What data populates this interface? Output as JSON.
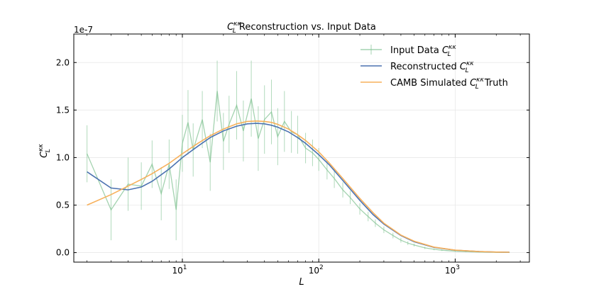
{
  "chart_data": {
    "type": "line",
    "title": "C_L^{κκ} Reconstruction vs. Input Data",
    "title_parts": {
      "symbol": "C",
      "sub": "L",
      "sup": "κκ",
      "rest": " Reconstruction vs. Input Data"
    },
    "xlabel": "L",
    "ylabel": "C_L^{κκ}",
    "ylabel_parts": {
      "symbol": "C",
      "sub": "L",
      "sup": "κκ"
    },
    "x_scale": "log",
    "xlim": [
      1.6,
      3500
    ],
    "ylim": [
      -1e-08,
      2.3e-07
    ],
    "y_offset_label": "1e-7",
    "x_ticks": [
      {
        "value": 10,
        "base": "10",
        "exp": "1"
      },
      {
        "value": 100,
        "base": "10",
        "exp": "2"
      },
      {
        "value": 1000,
        "base": "10",
        "exp": "3"
      }
    ],
    "y_ticks": [
      {
        "value": 0.0,
        "label": "0.0"
      },
      {
        "value": 5e-08,
        "label": "0.5"
      },
      {
        "value": 1e-07,
        "label": "1.0"
      },
      {
        "value": 1.5e-07,
        "label": "1.5"
      },
      {
        "value": 2e-07,
        "label": "2.0"
      }
    ],
    "grid": true,
    "legend_position": "top-right",
    "series": [
      {
        "name": "Input Data",
        "label_prefix": "Input Data ",
        "label_suffix": "",
        "color": "#7dc18f",
        "style": "errorbar",
        "x": [
          2,
          3,
          4,
          5,
          6,
          7,
          8,
          9,
          10,
          11,
          12,
          14,
          16,
          18,
          20,
          22,
          25,
          28,
          32,
          36,
          40,
          45,
          50,
          56,
          63,
          70,
          80,
          90,
          100,
          115,
          130,
          150,
          170,
          200,
          230,
          260,
          300,
          350,
          400,
          450,
          500,
          600,
          700,
          800,
          1000,
          1200,
          1500,
          2000,
          2500
        ],
        "values": [
          1.04e-07,
          4.5e-08,
          7.2e-08,
          7e-08,
          9.3e-08,
          6.2e-08,
          9.3e-08,
          4.5e-08,
          1.15e-07,
          1.37e-07,
          1.08e-07,
          1.4e-07,
          9.5e-08,
          1.7e-07,
          1.17e-07,
          1.35e-07,
          1.55e-07,
          1.28e-07,
          1.62e-07,
          1.2e-07,
          1.4e-07,
          1.48e-07,
          1.22e-07,
          1.38e-07,
          1.27e-07,
          1.24e-07,
          1.1e-07,
          1.05e-07,
          9.8e-08,
          8.7e-08,
          7.8e-08,
          6.6e-08,
          5.8e-08,
          4.6e-08,
          3.8e-08,
          3.1e-08,
          2.4e-08,
          1.8e-08,
          1.3e-08,
          1e-08,
          8e-09,
          5e-09,
          3.5e-09,
          2.5e-09,
          1.5e-09,
          1e-09,
          6e-10,
          3e-10,
          2e-10
        ],
        "errors": [
          3e-08,
          3.2e-08,
          2.8e-08,
          2.5e-08,
          2.5e-08,
          2.8e-08,
          2.6e-08,
          3.2e-08,
          3e-08,
          3.4e-08,
          2.8e-08,
          3e-08,
          3e-08,
          3.2e-08,
          3e-08,
          3e-08,
          3.6e-08,
          3.2e-08,
          4e-08,
          3.4e-08,
          3.6e-08,
          3.4e-08,
          3e-08,
          3.2e-08,
          2.2e-08,
          2e-08,
          1.6e-08,
          1.4e-08,
          1.2e-08,
          1e-08,
          1e-08,
          8e-09,
          7e-09,
          6e-09,
          5e-09,
          4e-09,
          3.5e-09,
          3e-09,
          2.5e-09,
          2e-09,
          1.5e-09,
          1.2e-09,
          1e-09,
          8e-10,
          6e-10,
          4e-10,
          3e-10,
          2e-10,
          2e-10
        ]
      },
      {
        "name": "Reconstructed",
        "label_prefix": "Reconstructed ",
        "label_suffix": "",
        "color": "#4c72b0",
        "style": "line",
        "x": [
          2,
          3,
          4,
          5,
          6,
          8,
          10,
          13,
          16,
          20,
          25,
          30,
          35,
          40,
          45,
          50,
          60,
          70,
          80,
          100,
          120,
          150,
          200,
          250,
          300,
          400,
          500,
          700,
          1000,
          1500,
          2000,
          2500
        ],
        "values": [
          8.5e-08,
          6.8e-08,
          6.6e-08,
          6.9e-08,
          7.5e-08,
          8.8e-08,
          1e-07,
          1.12e-07,
          1.21e-07,
          1.28e-07,
          1.33e-07,
          1.355e-07,
          1.36e-07,
          1.355e-07,
          1.34e-07,
          1.32e-07,
          1.27e-07,
          1.21e-07,
          1.15e-07,
          1.03e-07,
          9.2e-08,
          7.6e-08,
          5.5e-08,
          4e-08,
          3e-08,
          1.8e-08,
          1.15e-08,
          5.5e-09,
          2.5e-09,
          1.1e-09,
          6e-10,
          4e-10
        ]
      },
      {
        "name": "CAMB Simulated Truth",
        "label_prefix": "CAMB Simulated ",
        "label_suffix": " Truth",
        "color": "#f7b05b",
        "style": "line",
        "x": [
          2,
          3,
          4,
          5,
          6,
          8,
          10,
          13,
          16,
          20,
          25,
          30,
          35,
          40,
          45,
          50,
          60,
          70,
          80,
          100,
          120,
          150,
          200,
          250,
          300,
          400,
          500,
          700,
          1000,
          1500,
          2000,
          2500
        ],
        "values": [
          5e-08,
          6.1e-08,
          7e-08,
          7.7e-08,
          8.3e-08,
          9.4e-08,
          1.04e-07,
          1.15e-07,
          1.23e-07,
          1.3e-07,
          1.355e-07,
          1.38e-07,
          1.385e-07,
          1.38e-07,
          1.37e-07,
          1.35e-07,
          1.3e-07,
          1.24e-07,
          1.18e-07,
          1.06e-07,
          9.4e-08,
          7.8e-08,
          5.7e-08,
          4.2e-08,
          3.1e-08,
          1.85e-08,
          1.2e-08,
          5.8e-09,
          2.6e-09,
          1.1e-09,
          6e-10,
          4e-10
        ]
      }
    ]
  }
}
